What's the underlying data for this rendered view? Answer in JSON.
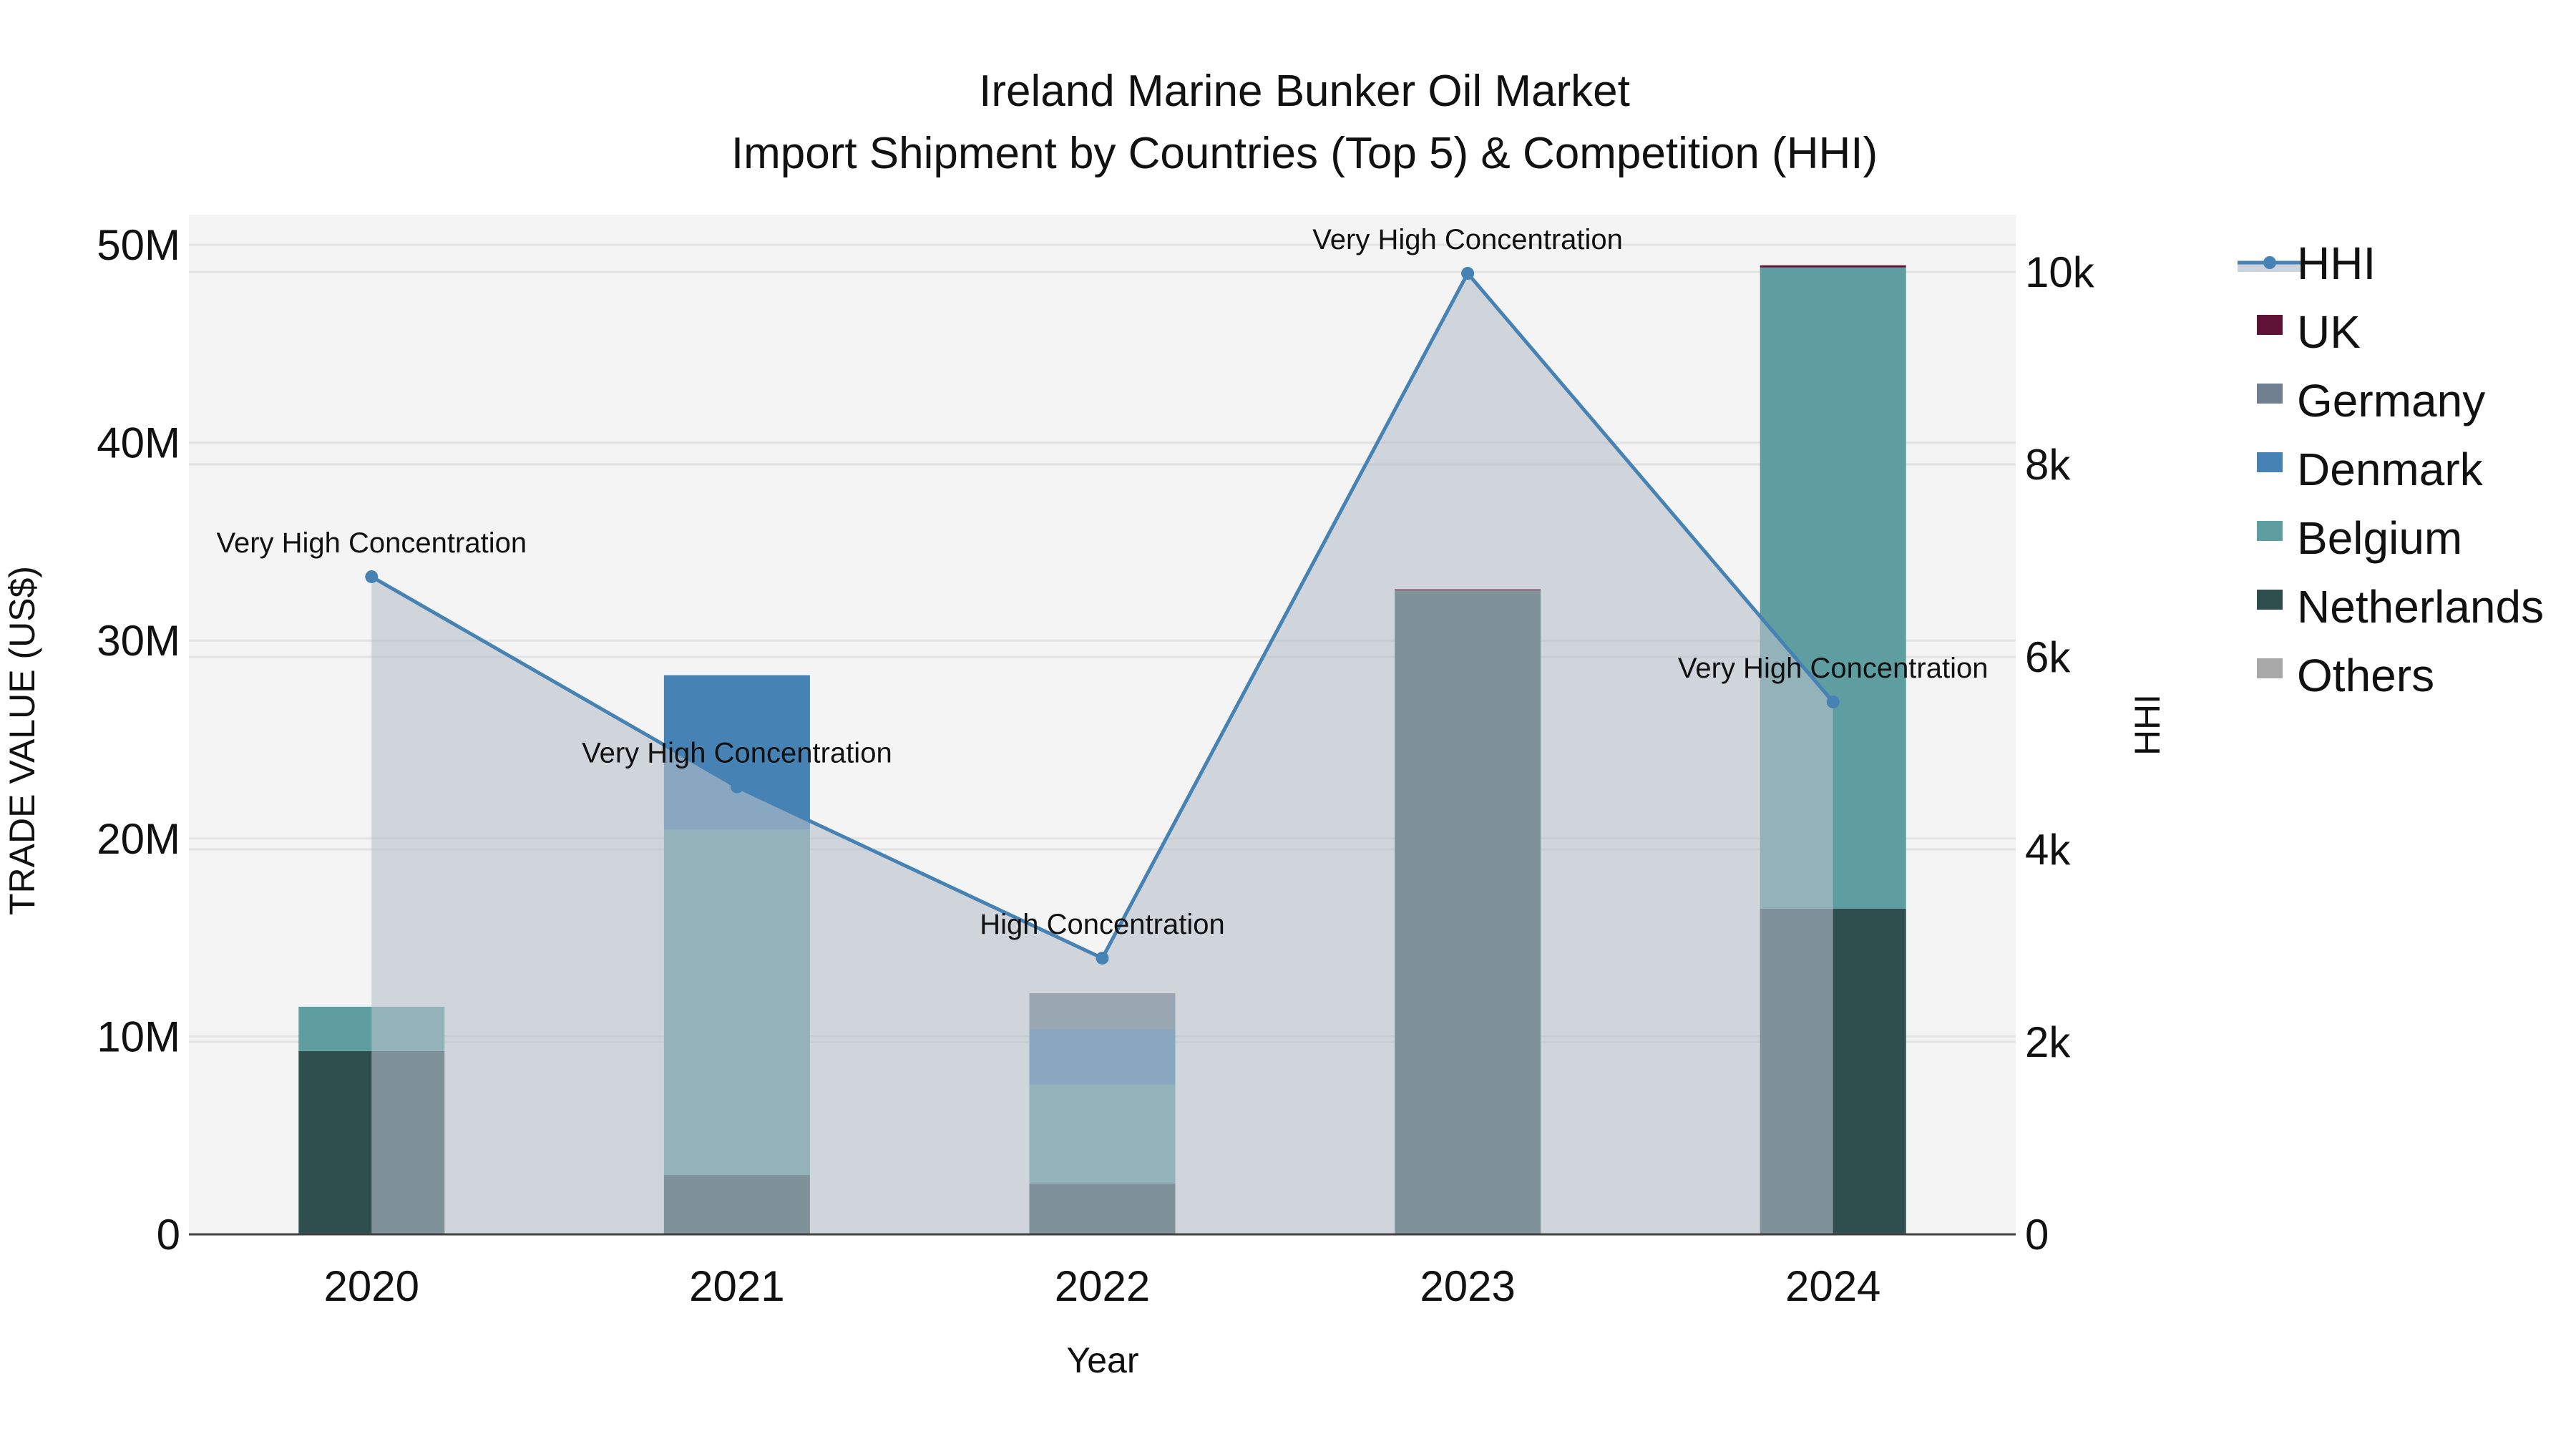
{
  "title": {
    "line1": "Ireland Marine Bunker Oil Market",
    "line2": "Import Shipment by Countries (Top 5) & Competition (HHI)"
  },
  "axes": {
    "x_title": "Year",
    "y_left_title": "TRADE VALUE (US$)",
    "y_right_title": "HHI",
    "y_left_ticks": [
      "0",
      "10M",
      "20M",
      "30M",
      "40M",
      "50M"
    ],
    "y_right_ticks": [
      "0",
      "2k",
      "4k",
      "6k",
      "8k",
      "10k"
    ]
  },
  "legend": [
    {
      "name": "HHI",
      "type": "line",
      "color": "#4682b4"
    },
    {
      "name": "UK",
      "type": "bar",
      "color": "#5e1236"
    },
    {
      "name": "Germany",
      "type": "bar",
      "color": "#708090"
    },
    {
      "name": "Denmark",
      "type": "bar",
      "color": "#4682b4"
    },
    {
      "name": "Belgium",
      "type": "bar",
      "color": "#5f9ea0"
    },
    {
      "name": "Netherlands",
      "type": "bar",
      "color": "#2f4f4f"
    },
    {
      "name": "Others",
      "type": "bar",
      "color": "#a9a9a9"
    }
  ],
  "chart_data": {
    "type": "bar",
    "title": "Ireland Marine Bunker Oil Market — Import Shipment by Countries (Top 5) & Competition (HHI)",
    "xlabel": "Year",
    "ylabel": "TRADE VALUE (US$)",
    "y2label": "HHI",
    "ylim": [
      0,
      51500000
    ],
    "y2lim": [
      0,
      10480
    ],
    "grid": true,
    "legend_position": "right",
    "stacked": true,
    "categories": [
      "2020",
      "2021",
      "2022",
      "2023",
      "2024"
    ],
    "series": [
      {
        "name": "Netherlands",
        "color": "#2f4f4f",
        "values": [
          9260000,
          3000000,
          2570000,
          32500000,
          16450000
        ]
      },
      {
        "name": "Belgium",
        "color": "#5f9ea0",
        "values": [
          2240000,
          17450000,
          4990000,
          0,
          32400000
        ]
      },
      {
        "name": "Denmark",
        "color": "#4682b4",
        "values": [
          0,
          7800000,
          2780000,
          0,
          0
        ]
      },
      {
        "name": "Germany",
        "color": "#708090",
        "values": [
          0,
          0,
          1840000,
          0,
          0
        ]
      },
      {
        "name": "UK",
        "color": "#5e1236",
        "values": [
          0,
          0,
          0,
          50000,
          100000
        ]
      },
      {
        "name": "Others",
        "color": "#a9a9a9",
        "values": [
          0,
          0,
          0,
          0,
          0
        ]
      }
    ],
    "hhi": {
      "name": "HHI",
      "type": "line+area",
      "axis": "right",
      "color": "#4682b4",
      "values": [
        6833,
        4650,
        2870,
        9985,
        5532
      ],
      "annotations": [
        "Very High Concentration",
        "Very High Concentration",
        "High Concentration",
        "Very High Concentration",
        "Very High Concentration"
      ]
    }
  }
}
